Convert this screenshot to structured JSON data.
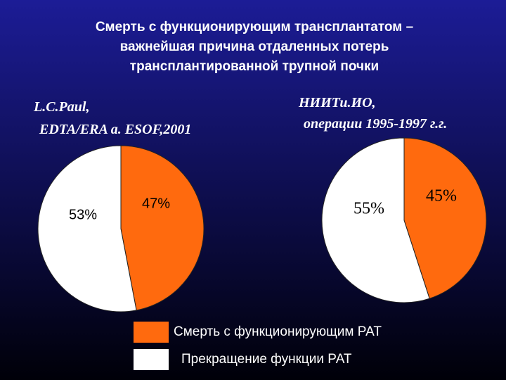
{
  "title": [
    "Смерть с функционирующим  трансплантатом –",
    "важнейшая причина отдаленных потерь",
    "трансплантированной трупной почки"
  ],
  "chart_data": [
    {
      "type": "pie",
      "title": "L.C.Paul,",
      "subtitle": "EDTA/ERA a. ESOF,2001",
      "categories": [
        "Смерть с функционирующим РАТ",
        "Прекращение функции РАТ"
      ],
      "values": [
        47,
        53
      ],
      "value_labels": [
        "47%",
        "53%"
      ],
      "colors": [
        "#ff6a0e",
        "#ffffff"
      ]
    },
    {
      "type": "pie",
      "title": "НИИТи.ИО,",
      "subtitle": "операции 1995-1997 г.г.",
      "values": [
        45,
        55
      ],
      "value_labels": [
        "45%",
        "55%"
      ],
      "colors": [
        "#ff6a0e",
        "#ffffff"
      ]
    }
  ]
}
